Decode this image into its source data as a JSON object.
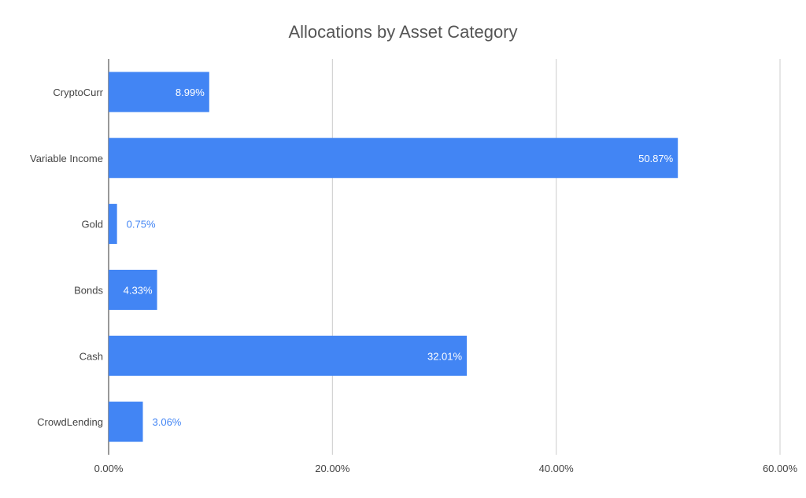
{
  "chart_data": {
    "type": "bar",
    "orientation": "horizontal",
    "title": "Allocations by Asset Category",
    "xlabel": "",
    "ylabel": "",
    "categories": [
      "CryptoCurr",
      "Variable Income",
      "Gold",
      "Bonds",
      "Cash",
      "CrowdLending"
    ],
    "values": [
      8.99,
      50.87,
      0.75,
      4.33,
      32.01,
      3.06
    ],
    "data_labels": [
      "8.99%",
      "50.87%",
      "0.75%",
      "4.33%",
      "32.01%",
      "3.06%"
    ],
    "xlim": [
      0,
      60
    ],
    "x_ticks": [
      0,
      20,
      40,
      60
    ],
    "x_tick_labels": [
      "0.00%",
      "20.00%",
      "40.00%",
      "60.00%"
    ],
    "grid": "vertical",
    "legend": "none",
    "colors": {
      "bar": "#4285f4",
      "label_inside": "#ffffff",
      "label_outside": "#4285f4",
      "axis_text": "#444444",
      "gridline": "#cccccc",
      "title": "#555555"
    }
  }
}
